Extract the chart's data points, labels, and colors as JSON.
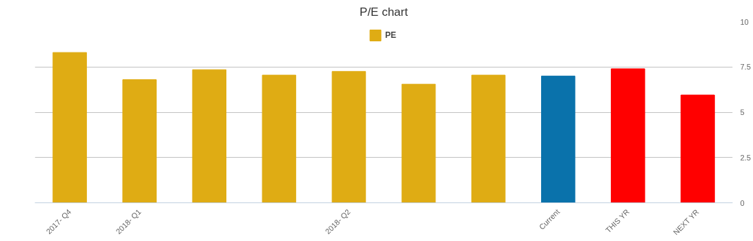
{
  "chart_data": {
    "type": "bar",
    "title": "P/E chart",
    "categories": [
      "2017- Q4",
      "2018- Q1",
      null,
      null,
      "2018- Q2",
      null,
      null,
      "Current",
      "THIS YR",
      "NEXT YR"
    ],
    "series": [
      {
        "name": "PE",
        "values": [
          8.3,
          6.8,
          7.35,
          7.05,
          7.25,
          6.55,
          7.05,
          7.0,
          7.4,
          5.95
        ],
        "colors": [
          "#dfac14",
          "#dfac14",
          "#dfac14",
          "#dfac14",
          "#dfac14",
          "#dfac14",
          "#dfac14",
          "#0a72ab",
          "#ff0000",
          "#ff0000"
        ]
      }
    ],
    "ylim": [
      0,
      10
    ],
    "yticks": [
      0,
      2.5,
      5,
      7.5,
      10
    ],
    "grid": "y",
    "legend": "top"
  }
}
